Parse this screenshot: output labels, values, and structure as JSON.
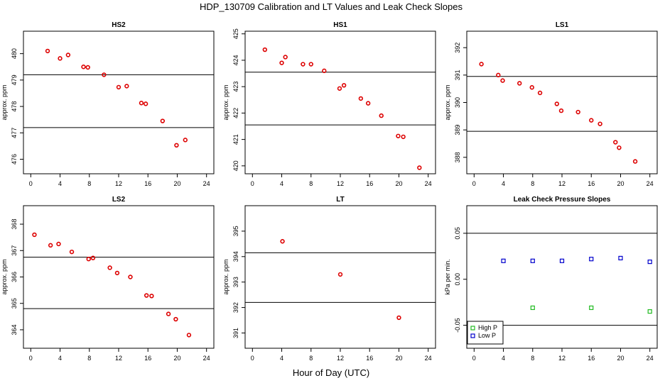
{
  "figure": {
    "title": "HDP_130709  Calibration and LT Values and Leak Check Slopes",
    "xlabel": "Hour of Day (UTC)"
  },
  "chart_data": [
    {
      "type": "scatter",
      "title": "HS2",
      "ylabel": "approx. ppm",
      "xlim": [
        -1.0,
        25.0
      ],
      "ylim": [
        475.45,
        480.85
      ],
      "xticks": [
        0,
        4,
        8,
        12,
        16,
        20,
        24
      ],
      "yticks": [
        476,
        477,
        478,
        479,
        480
      ],
      "hlines": [
        479.2,
        477.2
      ],
      "series": [
        {
          "color": "#dd0000",
          "x": [
            2.3,
            4.0,
            5.1,
            7.2,
            7.8,
            10.0,
            12.0,
            13.1,
            15.1,
            15.7,
            18.0,
            19.9,
            21.1
          ],
          "y": [
            480.1,
            479.82,
            479.95,
            479.5,
            479.48,
            479.2,
            478.73,
            478.77,
            478.13,
            478.1,
            477.45,
            476.53,
            476.73
          ]
        }
      ]
    },
    {
      "type": "scatter",
      "title": "HS1",
      "ylabel": "approx. ppm",
      "xlim": [
        -1.0,
        25.0
      ],
      "ylim": [
        419.7,
        425.1
      ],
      "xticks": [
        0,
        4,
        8,
        12,
        16,
        20,
        24
      ],
      "yticks": [
        420,
        421,
        422,
        423,
        424,
        425
      ],
      "hlines": [
        423.55,
        421.55
      ],
      "series": [
        {
          "color": "#dd0000",
          "x": [
            1.7,
            4.0,
            4.5,
            6.9,
            8.0,
            9.8,
            11.9,
            12.5,
            14.8,
            15.8,
            17.6,
            19.9,
            20.6,
            22.8
          ],
          "y": [
            424.4,
            423.9,
            424.12,
            423.85,
            423.85,
            423.6,
            422.93,
            423.05,
            422.55,
            422.37,
            421.9,
            421.13,
            421.1,
            419.93
          ]
        }
      ]
    },
    {
      "type": "scatter",
      "title": "LS1",
      "ylabel": "approx. ppm",
      "xlim": [
        -1.0,
        25.0
      ],
      "ylim": [
        387.4,
        392.6
      ],
      "xticks": [
        0,
        4,
        8,
        12,
        16,
        20,
        24
      ],
      "yticks": [
        388,
        389,
        390,
        391,
        392
      ],
      "hlines": [
        390.95,
        388.95
      ],
      "series": [
        {
          "color": "#dd0000",
          "x": [
            1.0,
            3.3,
            3.9,
            6.2,
            7.9,
            9.0,
            11.3,
            11.9,
            14.2,
            16.0,
            17.2,
            19.3,
            19.8,
            22.0
          ],
          "y": [
            391.4,
            391.0,
            390.8,
            390.7,
            390.55,
            390.35,
            389.95,
            389.7,
            389.65,
            389.35,
            389.22,
            388.55,
            388.35,
            387.85
          ]
        }
      ]
    },
    {
      "type": "scatter",
      "title": "LS2",
      "ylabel": "approx. ppm",
      "xlim": [
        -1.0,
        25.0
      ],
      "ylim": [
        363.3,
        368.7
      ],
      "xticks": [
        0,
        4,
        8,
        12,
        16,
        20,
        24
      ],
      "yticks": [
        364,
        365,
        366,
        367,
        368
      ],
      "hlines": [
        366.75,
        364.8
      ],
      "series": [
        {
          "color": "#dd0000",
          "x": [
            0.5,
            2.7,
            3.8,
            5.6,
            7.9,
            8.5,
            10.8,
            11.8,
            13.6,
            15.8,
            16.5,
            18.8,
            19.8,
            21.6
          ],
          "y": [
            367.6,
            367.2,
            367.25,
            366.95,
            366.68,
            366.72,
            366.35,
            366.15,
            366.0,
            365.3,
            365.28,
            364.6,
            364.4,
            363.8
          ]
        }
      ]
    },
    {
      "type": "scatter",
      "title": "LT",
      "ylabel": "approx. ppm",
      "xlim": [
        -1.0,
        25.0
      ],
      "ylim": [
        390.4,
        396.0
      ],
      "xticks": [
        0,
        4,
        8,
        12,
        16,
        20,
        24
      ],
      "yticks": [
        391,
        392,
        393,
        394,
        395
      ],
      "hlines": [
        394.15,
        392.2
      ],
      "series": [
        {
          "color": "#dd0000",
          "x": [
            4.1,
            12.0,
            20.0
          ],
          "y": [
            394.6,
            393.3,
            391.6
          ]
        }
      ]
    },
    {
      "type": "scatter",
      "title": "Leak Check Pressure Slopes",
      "ylabel": "kPa per min.",
      "xlim": [
        -1.0,
        25.0
      ],
      "ylim": [
        -0.075,
        0.08
      ],
      "xticks": [
        0,
        4,
        8,
        12,
        16,
        20,
        24
      ],
      "yticks": [
        -0.05,
        0.0,
        0.05
      ],
      "ytick_labels": [
        "-0.05",
        "0.00",
        "0.05"
      ],
      "hlines": [
        0.05,
        -0.05
      ],
      "legend": {
        "position": "bottom-left"
      },
      "series": [
        {
          "name": "High P",
          "color": "#22bb22",
          "x": [
            8,
            16,
            24
          ],
          "y": [
            -0.031,
            -0.031,
            -0.035
          ]
        },
        {
          "name": "Low P",
          "color": "#0000cc",
          "x": [
            4,
            8,
            12,
            16,
            20,
            24
          ],
          "y": [
            0.02,
            0.02,
            0.02,
            0.022,
            0.023,
            0.019
          ]
        }
      ]
    }
  ]
}
